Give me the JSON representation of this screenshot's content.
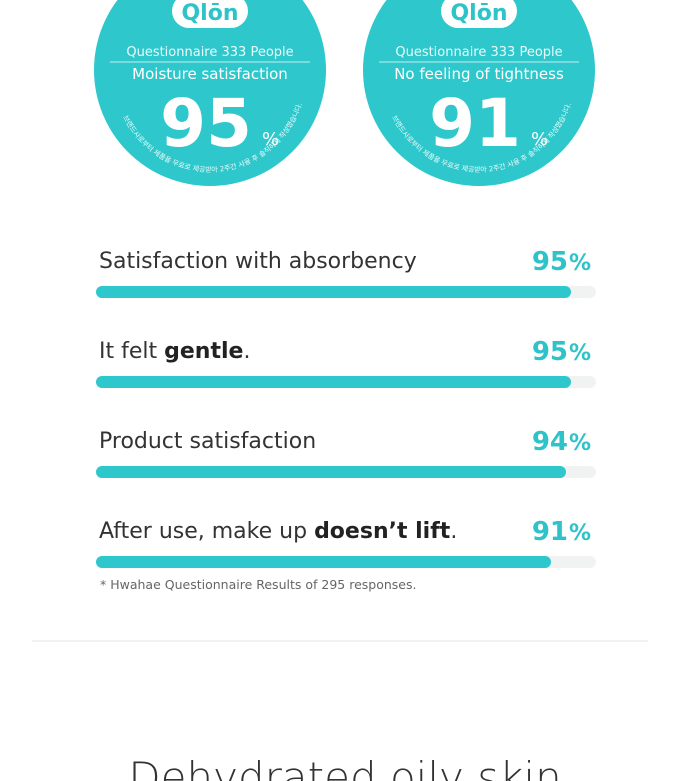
{
  "circles": [
    {
      "logo": "Qlōn",
      "caption": "Questionnaire 333 People",
      "subtitle": "Moisture satisfaction",
      "value": 95,
      "unit": "%",
      "disclaimer": "브랜드사로부터 제품을 무료로 제공받아 2주간 사용 후 솔직하게 작성했습니다."
    },
    {
      "logo": "Qlōn",
      "caption": "Questionnaire 333 People",
      "subtitle": "No feeling of tightness",
      "value": 91,
      "unit": "%",
      "disclaimer": "브랜드사로부터 제품을 무료로 제공받아 2주간 사용 후 솔직하게 작성했습니다."
    }
  ],
  "bars": [
    {
      "label_parts": [
        {
          "text": "Satisfaction with absorbency",
          "bold": false
        }
      ],
      "value": 95,
      "unit": "%"
    },
    {
      "label_parts": [
        {
          "text": "It felt ",
          "bold": false
        },
        {
          "text": "gentle",
          "bold": true
        },
        {
          "text": ".",
          "bold": false
        }
      ],
      "value": 95,
      "unit": "%"
    },
    {
      "label_parts": [
        {
          "text": "Product satisfaction",
          "bold": false
        }
      ],
      "value": 94,
      "unit": "%"
    },
    {
      "label_parts": [
        {
          "text": "After use, make up ",
          "bold": false
        },
        {
          "text": "doesn’t lift",
          "bold": true
        },
        {
          "text": ".",
          "bold": false
        }
      ],
      "value": 91,
      "unit": "%"
    }
  ],
  "bar_max": 100,
  "color": "#2ec8cc",
  "track_color": "#f1f3f3",
  "footnote": "* Hwahae Questionnaire Results of 295 responses.",
  "heading": "Dehydrated oily skin"
}
